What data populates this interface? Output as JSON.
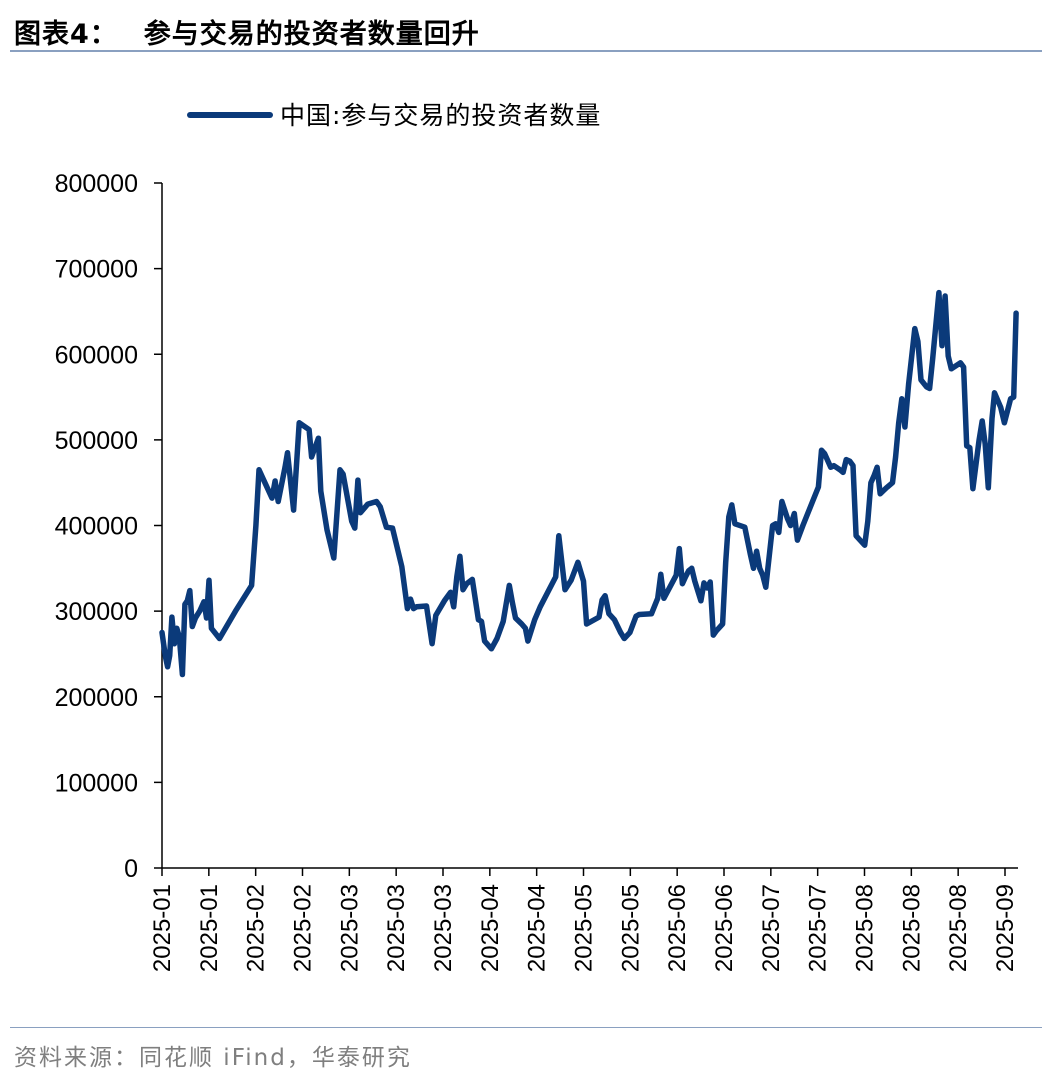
{
  "header": {
    "figure_label": "图表4：",
    "title": "参与交易的投资者数量回升"
  },
  "footer": {
    "source": "资料来源：同花顺 iFind，华泰研究"
  },
  "colors": {
    "line": "#0b3a7a",
    "rule": "#8aa0c0"
  },
  "chart_data": {
    "type": "line",
    "title": "参与交易的投资者数量回升",
    "xlabel": "",
    "ylabel": "",
    "ylim": [
      0,
      800000
    ],
    "yticks": [
      0,
      100000,
      200000,
      300000,
      400000,
      500000,
      600000,
      700000,
      800000
    ],
    "xtick_labels": [
      "2025-01",
      "2025-01",
      "2025-02",
      "2025-02",
      "2025-03",
      "2025-03",
      "2025-03",
      "2025-04",
      "2025-04",
      "2025-05",
      "2025-05",
      "2025-06",
      "2025-06",
      "2025-07",
      "2025-07",
      "2025-08",
      "2025-08",
      "2025-08",
      "2025-09"
    ],
    "grid": false,
    "legend": "top-left",
    "series": [
      {
        "name": "中国:参与交易的投资者数量",
        "points": [
          [
            0.0,
            275000
          ],
          [
            1.1,
            247000
          ],
          [
            1.8,
            235000
          ],
          [
            2.5,
            248000
          ],
          [
            3.2,
            293000
          ],
          [
            4.0,
            262000
          ],
          [
            4.8,
            280000
          ],
          [
            5.6,
            270000
          ],
          [
            6.6,
            226000
          ],
          [
            7.4,
            308000
          ],
          [
            8.2,
            312000
          ],
          [
            9.0,
            324000
          ],
          [
            9.8,
            282000
          ],
          [
            10.8,
            292000
          ],
          [
            12.2,
            300000
          ],
          [
            13.6,
            311000
          ],
          [
            14.4,
            292000
          ],
          [
            15.2,
            336000
          ],
          [
            16.0,
            280000
          ],
          [
            18.6,
            268000
          ],
          [
            23.8,
            300000
          ],
          [
            29.0,
            330000
          ],
          [
            30.4,
            400000
          ],
          [
            31.4,
            465000
          ],
          [
            35.6,
            432000
          ],
          [
            36.6,
            452000
          ],
          [
            37.6,
            428000
          ],
          [
            39.8,
            468000
          ],
          [
            40.6,
            485000
          ],
          [
            42.6,
            418000
          ],
          [
            44.4,
            520000
          ],
          [
            47.6,
            512000
          ],
          [
            48.4,
            480000
          ],
          [
            50.6,
            502000
          ],
          [
            51.4,
            440000
          ],
          [
            53.4,
            395000
          ],
          [
            55.6,
            362000
          ],
          [
            57.6,
            465000
          ],
          [
            58.6,
            460000
          ],
          [
            61.4,
            405000
          ],
          [
            62.4,
            397000
          ],
          [
            63.4,
            453000
          ],
          [
            64.2,
            415000
          ],
          [
            66.6,
            425000
          ],
          [
            69.4,
            428000
          ],
          [
            70.6,
            422000
          ],
          [
            72.6,
            398000
          ],
          [
            74.6,
            397000
          ],
          [
            77.6,
            352000
          ],
          [
            79.4,
            303000
          ],
          [
            80.4,
            314000
          ],
          [
            81.4,
            303000
          ],
          [
            82.4,
            305000
          ],
          [
            85.6,
            306000
          ],
          [
            87.4,
            262000
          ],
          [
            88.6,
            295000
          ],
          [
            91.4,
            312000
          ],
          [
            93.4,
            322000
          ],
          [
            94.4,
            305000
          ],
          [
            95.4,
            340000
          ],
          [
            96.4,
            364000
          ],
          [
            97.4,
            325000
          ],
          [
            98.6,
            332000
          ],
          [
            100.4,
            337000
          ],
          [
            102.4,
            290000
          ],
          [
            103.4,
            288000
          ],
          [
            104.4,
            265000
          ],
          [
            106.6,
            256000
          ],
          [
            108.4,
            268000
          ],
          [
            110.4,
            288000
          ],
          [
            112.4,
            330000
          ],
          [
            113.4,
            310000
          ],
          [
            114.4,
            292000
          ],
          [
            116.4,
            285000
          ],
          [
            117.6,
            280000
          ],
          [
            118.4,
            265000
          ],
          [
            120.6,
            290000
          ],
          [
            122.4,
            305000
          ],
          [
            127.4,
            340000
          ],
          [
            128.4,
            388000
          ],
          [
            130.4,
            325000
          ],
          [
            132.4,
            336000
          ],
          [
            134.6,
            357000
          ],
          [
            136.4,
            335000
          ],
          [
            137.4,
            285000
          ],
          [
            141.4,
            293000
          ],
          [
            142.4,
            313000
          ],
          [
            143.4,
            318000
          ],
          [
            144.6,
            297000
          ],
          [
            146.4,
            290000
          ],
          [
            148.4,
            275000
          ],
          [
            149.6,
            268000
          ],
          [
            151.4,
            275000
          ],
          [
            153.4,
            294000
          ],
          [
            154.4,
            296000
          ],
          [
            158.4,
            297000
          ],
          [
            160.4,
            315000
          ],
          [
            161.4,
            343000
          ],
          [
            162.4,
            315000
          ],
          [
            166.4,
            342000
          ],
          [
            167.4,
            373000
          ],
          [
            168.4,
            332000
          ],
          [
            169.4,
            340000
          ],
          [
            170.4,
            347000
          ],
          [
            171.4,
            350000
          ],
          [
            172.4,
            335000
          ],
          [
            174.4,
            312000
          ],
          [
            175.4,
            333000
          ],
          [
            176.4,
            327000
          ],
          [
            177.4,
            334000
          ],
          [
            178.4,
            272000
          ],
          [
            179.4,
            277000
          ],
          [
            181.4,
            285000
          ],
          [
            182.4,
            357000
          ],
          [
            183.4,
            410000
          ],
          [
            184.4,
            424000
          ],
          [
            185.4,
            402000
          ],
          [
            188.6,
            398000
          ],
          [
            190.4,
            366000
          ],
          [
            191.4,
            350000
          ],
          [
            192.4,
            370000
          ],
          [
            193.4,
            350000
          ],
          [
            194.4,
            342000
          ],
          [
            195.4,
            328000
          ],
          [
            197.6,
            400000
          ],
          [
            198.6,
            402000
          ],
          [
            199.6,
            392000
          ],
          [
            200.6,
            428000
          ],
          [
            202.4,
            408000
          ],
          [
            203.4,
            400000
          ],
          [
            204.6,
            414000
          ],
          [
            205.6,
            383000
          ],
          [
            207.4,
            400000
          ],
          [
            210.4,
            427000
          ],
          [
            212.4,
            445000
          ],
          [
            213.4,
            488000
          ],
          [
            214.4,
            484000
          ],
          [
            216.4,
            468000
          ],
          [
            217.4,
            470000
          ],
          [
            219.4,
            465000
          ],
          [
            220.4,
            462000
          ],
          [
            221.4,
            477000
          ],
          [
            222.6,
            475000
          ],
          [
            223.6,
            470000
          ],
          [
            224.6,
            388000
          ],
          [
            227.4,
            377000
          ],
          [
            228.4,
            405000
          ],
          [
            229.4,
            450000
          ],
          [
            230.4,
            458000
          ],
          [
            231.4,
            468000
          ],
          [
            232.4,
            437000
          ],
          [
            234.4,
            444000
          ],
          [
            236.4,
            450000
          ],
          [
            237.4,
            480000
          ],
          [
            238.4,
            520000
          ],
          [
            239.4,
            548000
          ],
          [
            240.4,
            515000
          ],
          [
            241.6,
            565000
          ],
          [
            243.6,
            630000
          ],
          [
            244.6,
            615000
          ],
          [
            245.6,
            570000
          ],
          [
            247.4,
            562000
          ],
          [
            248.4,
            560000
          ],
          [
            249.4,
            595000
          ],
          [
            251.4,
            672000
          ],
          [
            252.4,
            610000
          ],
          [
            253.4,
            668000
          ],
          [
            254.4,
            598000
          ],
          [
            255.4,
            583000
          ],
          [
            258.4,
            590000
          ],
          [
            259.4,
            585000
          ],
          [
            260.4,
            493000
          ],
          [
            261.4,
            491000
          ],
          [
            262.4,
            443000
          ],
          [
            264.4,
            500000
          ],
          [
            265.4,
            522000
          ],
          [
            266.4,
            495000
          ],
          [
            267.4,
            444000
          ],
          [
            268.6,
            525000
          ],
          [
            269.4,
            555000
          ],
          [
            271.4,
            538000
          ],
          [
            272.6,
            520000
          ],
          [
            274.6,
            548000
          ],
          [
            275.6,
            550000
          ],
          [
            276.4,
            648000
          ]
        ]
      }
    ]
  }
}
